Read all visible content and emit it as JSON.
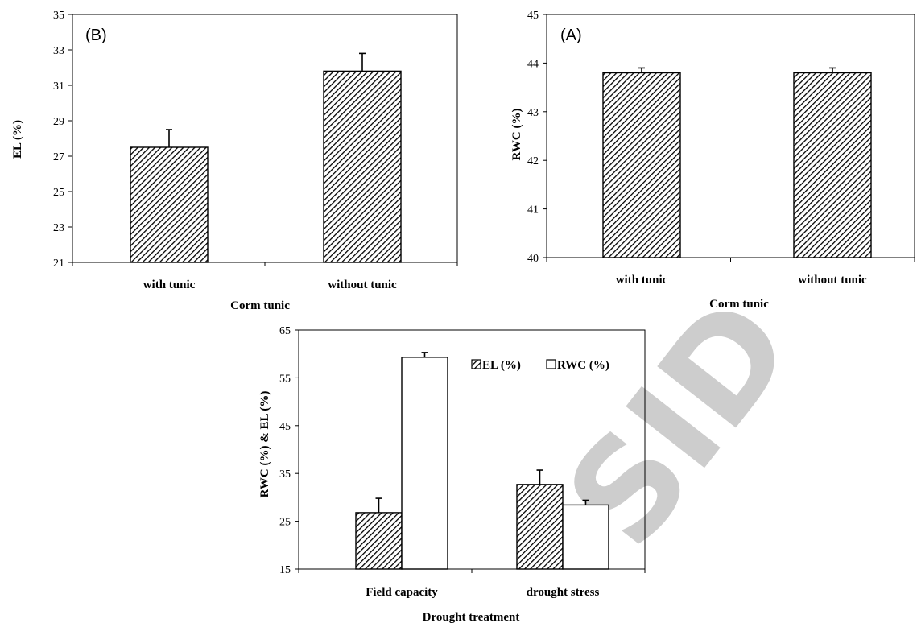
{
  "chart_data": [
    {
      "type": "bar",
      "panel_label": "(B)",
      "categories": [
        "with tunic",
        "without tunic"
      ],
      "values": [
        27.5,
        31.8
      ],
      "error": [
        1.0,
        1.0
      ],
      "xlabel": "Corm tunic",
      "ylabel": "EL (%)",
      "ylim": [
        21,
        35
      ],
      "yticks": [
        21,
        23,
        25,
        27,
        29,
        31,
        33,
        35
      ],
      "grid": false,
      "fill": "hatched"
    },
    {
      "type": "bar",
      "panel_label": "(A)",
      "categories": [
        "with tunic",
        "without tunic"
      ],
      "values": [
        43.8,
        43.8
      ],
      "error": [
        0.1,
        0.1
      ],
      "xlabel": "Corm tunic",
      "ylabel": "RWC (%)",
      "ylim": [
        40,
        45
      ],
      "yticks": [
        40,
        41,
        42,
        43,
        44,
        45
      ],
      "grid": false,
      "fill": "hatched"
    },
    {
      "type": "bar",
      "categories": [
        "Field capacity",
        "drought stress"
      ],
      "series": [
        {
          "name": "EL (%)",
          "values": [
            26.8,
            32.7
          ],
          "error": [
            3.0,
            3.0
          ],
          "fill": "hatched"
        },
        {
          "name": "RWC (%)",
          "values": [
            59.3,
            28.4
          ],
          "error": [
            1.0,
            1.0
          ],
          "fill": "white"
        }
      ],
      "xlabel": "Drought treatment",
      "ylabel": "RWC (%) & EL (%)",
      "ylim": [
        15,
        65
      ],
      "yticks": [
        15,
        25,
        35,
        45,
        55,
        65
      ],
      "legend_position": "top-right",
      "grid": false
    }
  ],
  "watermark": "SID",
  "colors": {
    "ink": "#000000",
    "watermark": "#c8c8c8",
    "bar_white": "#ffffff"
  }
}
